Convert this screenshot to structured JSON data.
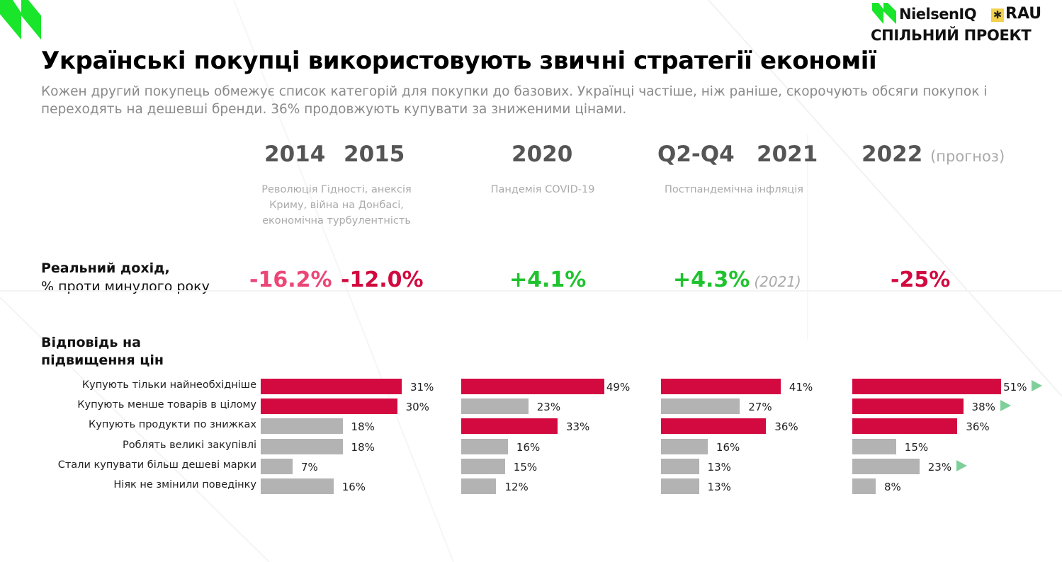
{
  "header": {
    "title": "Українські покупці використовують звичні стратегії економії",
    "subtitle": "Кожен другий покупець обмежує список категорій для покупки до базових. Українці частіше, ніж раніше, скорочують обсяги покупок і переходять на дешевші бренди. 36% продовжують купувати за зниженими цінами."
  },
  "brand": {
    "nielsen": "NielsenIQ",
    "rau": "RAU",
    "joint": "СПІЛЬНИЙ ПРОЕКТ"
  },
  "periods": [
    {
      "years": [
        "2014",
        "2015"
      ],
      "note": "",
      "event": "Революція Гідності, анексія Криму, війна на Донбасі, економічна турбулентність"
    },
    {
      "years": [
        "2020"
      ],
      "note": "",
      "event": "Пандемія COVID-19"
    },
    {
      "years": [
        "Q2-Q4",
        "2021"
      ],
      "note": "",
      "event": "Постпандемічна інфляція"
    },
    {
      "years": [
        "2022"
      ],
      "note": "(прогноз)",
      "event": ""
    }
  ],
  "income": {
    "label_bold": "Реальний дохід,",
    "label_rest": "% проти минулого  року",
    "values": [
      {
        "text": "-16.2%",
        "note": "",
        "color": "#ec4677"
      },
      {
        "text": "-12.0%",
        "note": "",
        "color": "#d2093f"
      },
      {
        "text": "+4.1%",
        "note": "",
        "color": "#1fc32e"
      },
      {
        "text": "+4.3%",
        "note": "(2021)",
        "color": "#1fc32e"
      },
      {
        "text": "-25%",
        "note": "",
        "color": "#d2093f"
      }
    ]
  },
  "response_label": "Відповідь на підвищення цін",
  "colors": {
    "highlight": "#d30a40",
    "neutral": "#b3b3b3",
    "trend_up": "#7fcf9b",
    "logo_green": "#19e62b"
  },
  "chart_data": {
    "type": "bar",
    "title": "Відповідь на підвищення цін",
    "categories": [
      "Купують тільки найнеобхідніше",
      "Купують менше товарів в цілому",
      "Купують продукти по знижках",
      "Роблять великі закупівлі",
      "Стали купувати більш дешеві марки",
      "Ніяк не змінили поведінку"
    ],
    "series": [
      {
        "name": "2014-2015",
        "values": [
          31,
          30,
          18,
          18,
          7,
          16
        ],
        "labels": [
          "31%",
          "30%",
          "18%",
          "18%",
          "7%",
          "16%"
        ],
        "highlight": [
          true,
          true,
          false,
          false,
          false,
          false
        ],
        "trend_up": [
          false,
          false,
          false,
          false,
          false,
          false
        ]
      },
      {
        "name": "2020",
        "values": [
          49,
          23,
          33,
          16,
          15,
          12
        ],
        "labels": [
          "49%",
          "23%",
          "33%",
          "16%",
          "15%",
          "12%"
        ],
        "highlight": [
          true,
          false,
          true,
          false,
          false,
          false
        ],
        "trend_up": [
          false,
          false,
          false,
          false,
          false,
          false
        ]
      },
      {
        "name": "Q2-Q4 2021",
        "values": [
          41,
          27,
          36,
          16,
          13,
          13
        ],
        "labels": [
          "41%",
          "27%",
          "36%",
          "16%",
          "13%",
          "13%"
        ],
        "highlight": [
          true,
          false,
          true,
          false,
          false,
          false
        ],
        "trend_up": [
          false,
          false,
          false,
          false,
          false,
          false
        ]
      },
      {
        "name": "2022 (прогноз)",
        "values": [
          51,
          38,
          36,
          15,
          23,
          8
        ],
        "labels": [
          "51%",
          "38%",
          "36%",
          "15%",
          "23%",
          "8%"
        ],
        "highlight": [
          true,
          true,
          true,
          false,
          false,
          false
        ],
        "trend_up": [
          true,
          true,
          false,
          false,
          true,
          false
        ]
      }
    ],
    "xlabel": "",
    "ylabel": "",
    "unit": "%"
  }
}
